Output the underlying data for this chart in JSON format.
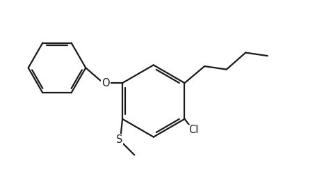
{
  "bg_color": "#ffffff",
  "line_color": "#1a1a1a",
  "line_width": 1.6,
  "font_size": 10.5,
  "label_S": "S",
  "label_Cl": "Cl",
  "label_O": "O",
  "figsize": [
    4.53,
    2.67
  ],
  "dpi": 100
}
